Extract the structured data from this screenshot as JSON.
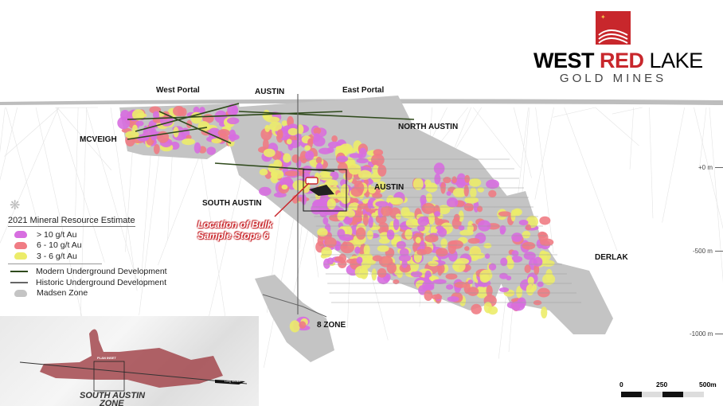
{
  "logo": {
    "word1": "WEST",
    "word2": "RED",
    "word3": "LAKE",
    "subtitle": "GOLD MINES",
    "brand_red": "#c8272c"
  },
  "zones": {
    "west_portal": "West Portal",
    "austin_top": "AUSTIN",
    "east_portal": "East Portal",
    "north_austin": "NORTH AUSTIN",
    "mcveigh": "MCVEIGH",
    "south_austin": "SOUTH AUSTIN",
    "austin": "AUSTIN",
    "derlak": "DERLAK",
    "eight_zone": "8 ZONE"
  },
  "callout": {
    "line1": "Location of Bulk",
    "line2": "Sample Stope 6"
  },
  "elevations": [
    "+0 m",
    "-500 m",
    "-1000 m"
  ],
  "legend": {
    "title": "2021 Mineral Resource Estimate",
    "grades": [
      {
        "label": "> 10 g/t Au",
        "color": "#d76ee0"
      },
      {
        "label": "6 - 10 g/t Au",
        "color": "#f07c84"
      },
      {
        "label": "3 - 6 g/t Au",
        "color": "#ecec6a"
      }
    ],
    "lines": [
      {
        "label": "Modern Underground Development",
        "color": "#2f4a1c"
      },
      {
        "label": "Historic Underground Development",
        "color": "#666666"
      }
    ],
    "zone": {
      "label": "Madsen Zone",
      "color": "#c4c4c4"
    }
  },
  "inset": {
    "plan_label": "PLAN INSET",
    "section_label": "Long Section",
    "zone_title_1": "SOUTH AUSTIN",
    "zone_title_2": "ZONE"
  },
  "scale_bar": {
    "ticks": [
      "0",
      "250",
      "500m"
    ]
  }
}
